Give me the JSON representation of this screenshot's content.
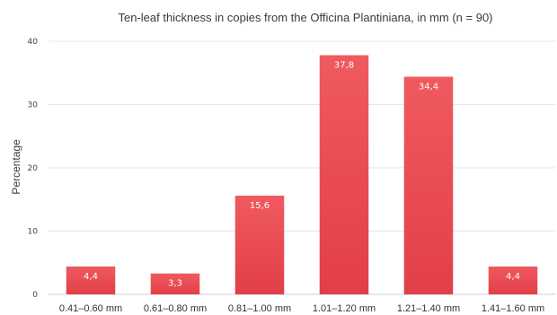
{
  "chart_data": {
    "type": "bar",
    "title": "Ten-leaf thickness in copies from the Officina Plantiniana, in mm (n = 90)",
    "xlabel": "",
    "ylabel": "Percentage",
    "categories": [
      "0.41–0.60 mm",
      "0.61–0.80 mm",
      "0.81–1.00 mm",
      "1.01–1.20 mm",
      "1.21–1.40 mm",
      "1.41–1.60 mm"
    ],
    "values": [
      4.4,
      3.3,
      15.6,
      37.8,
      34.4,
      4.4
    ],
    "data_labels": [
      "4,4",
      "3,3",
      "15,6",
      "37,8",
      "34,4",
      "4,4"
    ],
    "ylim": [
      0,
      40
    ],
    "yticks": [
      0,
      10,
      20,
      30,
      40
    ],
    "grid": true,
    "bar_color": "#e8464d"
  }
}
